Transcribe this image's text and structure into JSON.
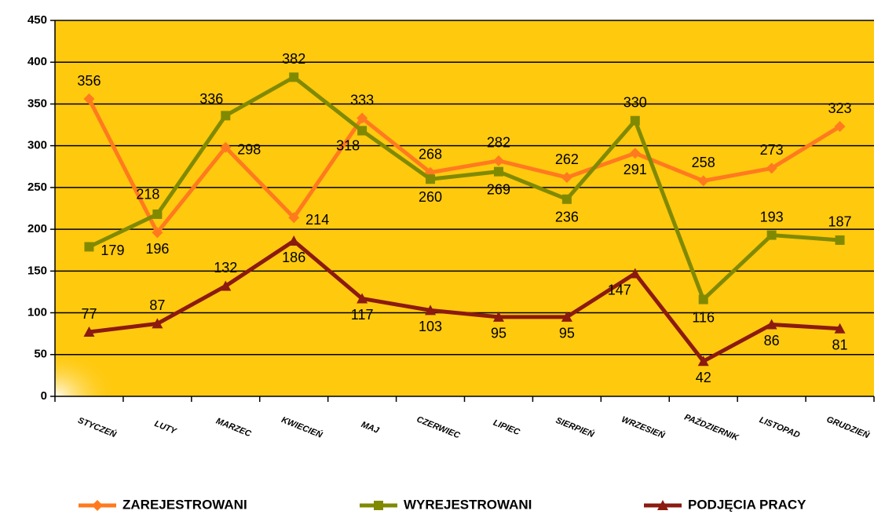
{
  "chart_data": {
    "type": "line",
    "categories": [
      "STYCZEŃ",
      "LUTY",
      "MARZEC",
      "KWIECIEŃ",
      "MAJ",
      "CZERWIEC",
      "LIPIEC",
      "SIERPIEŃ",
      "WRZESIEŃ",
      "PAŹDZIERNIK",
      "LISTOPAD",
      "GRUDZIEŃ"
    ],
    "series": [
      {
        "name": "ZAREJESTROWANI",
        "color": "#ff7a1f",
        "marker": "diamond",
        "values": [
          356,
          196,
          298,
          214,
          333,
          268,
          282,
          262,
          291,
          258,
          273,
          323
        ]
      },
      {
        "name": "WYREJESTROWANI",
        "color": "#808a00",
        "marker": "square",
        "values": [
          179,
          218,
          336,
          382,
          318,
          260,
          269,
          236,
          330,
          116,
          193,
          187
        ]
      },
      {
        "name": "PODJĘCIA PRACY",
        "color": "#8b1a10",
        "marker": "triangle",
        "values": [
          77,
          87,
          132,
          186,
          117,
          103,
          95,
          95,
          147,
          42,
          86,
          81
        ]
      }
    ],
    "ylim": [
      0,
      450
    ],
    "yticks": [
      0,
      50,
      100,
      150,
      200,
      250,
      300,
      350,
      400,
      450
    ],
    "grid": true,
    "legend": "bottom"
  }
}
